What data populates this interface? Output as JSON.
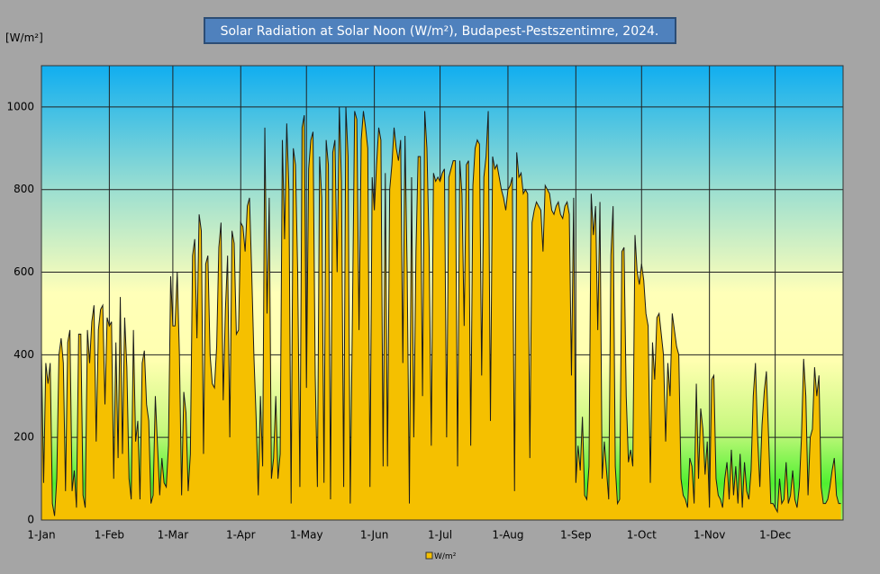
{
  "chart_data": {
    "type": "area",
    "title": "Solar Radiation at Solar Noon (W/m²), Budapest-Pestszentimre, 2024.",
    "y_axis_label": "[W/m²]",
    "ylim": [
      0,
      1100
    ],
    "yticks": [
      0,
      200,
      400,
      600,
      800,
      1000
    ],
    "grid": true,
    "legend": "bottom",
    "categories": [
      "1-Jan",
      null,
      null,
      null,
      null,
      null,
      null,
      null,
      null,
      null,
      null,
      null,
      null,
      null,
      null,
      null,
      null,
      null,
      null,
      null,
      null,
      null,
      null,
      null,
      null,
      null,
      null,
      null,
      null,
      null,
      null,
      "1-Feb",
      null,
      null,
      null,
      null,
      null,
      null,
      null,
      null,
      null,
      null,
      null,
      null,
      null,
      null,
      null,
      null,
      null,
      null,
      null,
      null,
      null,
      null,
      null,
      null,
      null,
      null,
      null,
      null,
      "1-Mar",
      null,
      null,
      null,
      null,
      null,
      null,
      null,
      null,
      null,
      null,
      null,
      null,
      null,
      null,
      null,
      null,
      null,
      null,
      null,
      null,
      null,
      null,
      null,
      null,
      null,
      null,
      null,
      null,
      null,
      null,
      "1-Apr",
      null,
      null,
      null,
      null,
      null,
      null,
      null,
      null,
      null,
      null,
      null,
      null,
      null,
      null,
      null,
      null,
      null,
      null,
      null,
      null,
      null,
      null,
      null,
      null,
      null,
      null,
      null,
      null,
      null,
      "1-May",
      null,
      null,
      null,
      null,
      null,
      null,
      null,
      null,
      null,
      null,
      null,
      null,
      null,
      null,
      null,
      null,
      null,
      null,
      null,
      null,
      null,
      null,
      null,
      null,
      null,
      null,
      null,
      null,
      null,
      null,
      "1-Jun",
      null,
      null,
      null,
      null,
      null,
      null,
      null,
      null,
      null,
      null,
      null,
      null,
      null,
      null,
      null,
      null,
      null,
      null,
      null,
      null,
      null,
      null,
      null,
      null,
      null,
      null,
      null,
      null,
      null,
      "1-Jul",
      null,
      null,
      null,
      null,
      null,
      null,
      null,
      null,
      null,
      null,
      null,
      null,
      null,
      null,
      null,
      null,
      null,
      null,
      null,
      null,
      null,
      null,
      null,
      null,
      null,
      null,
      null,
      null,
      null,
      null,
      "1-Aug",
      null,
      null,
      null,
      null,
      null,
      null,
      null,
      null,
      null,
      null,
      null,
      null,
      null,
      null,
      null,
      null,
      null,
      null,
      null,
      null,
      null,
      null,
      null,
      null,
      null,
      null,
      null,
      null,
      null,
      null,
      "1-Sep",
      null,
      null,
      null,
      null,
      null,
      null,
      null,
      null,
      null,
      null,
      null,
      null,
      null,
      null,
      null,
      null,
      null,
      null,
      null,
      null,
      null,
      null,
      null,
      null,
      null,
      null,
      null,
      null,
      null,
      "1-Oct",
      null,
      null,
      null,
      null,
      null,
      null,
      null,
      null,
      null,
      null,
      null,
      null,
      null,
      null,
      null,
      null,
      null,
      null,
      null,
      null,
      null,
      null,
      null,
      null,
      null,
      null,
      null,
      null,
      null,
      null,
      "1-Nov",
      null,
      null,
      null,
      null,
      null,
      null,
      null,
      null,
      null,
      null,
      null,
      null,
      null,
      null,
      null,
      null,
      null,
      null,
      null,
      null,
      null,
      null,
      null,
      null,
      null,
      null,
      null,
      null,
      null,
      "1-Dec",
      null,
      null,
      null,
      null,
      null,
      null,
      null,
      null,
      null,
      null,
      null,
      null,
      null,
      null,
      null,
      null,
      null,
      null,
      null,
      null,
      null,
      null,
      null,
      null,
      null,
      null,
      null,
      null,
      null,
      null
    ],
    "series": [
      {
        "name": "W/m²",
        "color": "#f5c000",
        "values": [
          410,
          90,
          380,
          330,
          380,
          40,
          10,
          100,
          400,
          440,
          380,
          70,
          430,
          460,
          70,
          120,
          30,
          450,
          450,
          60,
          30,
          460,
          380,
          480,
          520,
          190,
          460,
          510,
          520,
          280,
          490,
          470,
          480,
          100,
          430,
          150,
          540,
          160,
          490,
          370,
          100,
          50,
          460,
          190,
          240,
          50,
          380,
          410,
          280,
          240,
          40,
          60,
          300,
          180,
          60,
          150,
          90,
          80,
          180,
          590,
          470,
          470,
          600,
          400,
          60,
          310,
          260,
          70,
          160,
          640,
          680,
          440,
          740,
          700,
          160,
          620,
          640,
          400,
          330,
          320,
          420,
          660,
          720,
          290,
          510,
          640,
          200,
          700,
          670,
          450,
          460,
          720,
          710,
          650,
          760,
          780,
          600,
          400,
          250,
          60,
          300,
          130,
          950,
          500,
          780,
          100,
          150,
          300,
          100,
          160,
          920,
          680,
          960,
          800,
          40,
          900,
          860,
          600,
          80,
          950,
          980,
          320,
          850,
          920,
          940,
          350,
          80,
          880,
          780,
          90,
          920,
          860,
          50,
          890,
          920,
          600,
          1000,
          820,
          80,
          1000,
          880,
          40,
          500,
          990,
          970,
          460,
          920,
          990,
          950,
          900,
          80,
          830,
          750,
          860,
          950,
          920,
          130,
          840,
          130,
          800,
          860,
          950,
          900,
          870,
          920,
          380,
          930,
          600,
          40,
          830,
          200,
          650,
          880,
          880,
          300,
          990,
          900,
          660,
          180,
          840,
          820,
          830,
          820,
          840,
          850,
          200,
          830,
          850,
          870,
          870,
          130,
          870,
          790,
          470,
          860,
          870,
          180,
          810,
          900,
          920,
          910,
          350,
          830,
          880,
          990,
          240,
          880,
          850,
          860,
          830,
          800,
          780,
          750,
          800,
          810,
          830,
          70,
          890,
          830,
          840,
          790,
          800,
          790,
          150,
          720,
          750,
          770,
          760,
          750,
          650,
          810,
          800,
          790,
          750,
          740,
          760,
          770,
          740,
          730,
          760,
          770,
          740,
          350,
          780,
          90,
          180,
          120,
          250,
          60,
          50,
          130,
          790,
          690,
          760,
          460,
          770,
          100,
          190,
          120,
          50,
          640,
          760,
          130,
          40,
          50,
          650,
          660,
          300,
          140,
          170,
          130,
          690,
          600,
          570,
          620,
          580,
          500,
          470,
          90,
          430,
          340,
          490,
          500,
          450,
          400,
          190,
          380,
          300,
          500,
          460,
          420,
          400,
          100,
          60,
          50,
          30,
          150,
          130,
          40,
          330,
          100,
          270,
          220,
          110,
          190,
          30,
          340,
          350,
          100,
          60,
          50,
          30,
          100,
          140,
          50,
          170,
          60,
          130,
          40,
          160,
          30,
          140,
          70,
          50,
          120,
          300,
          380,
          200,
          80,
          230,
          310,
          360,
          200,
          40,
          40,
          30,
          20,
          100,
          40,
          50,
          140,
          40,
          60,
          120,
          50,
          30,
          80,
          200,
          390,
          300,
          60,
          200,
          220,
          370,
          300,
          350,
          80,
          40,
          40,
          50,
          80,
          120,
          150,
          60,
          40,
          40
        ]
      }
    ]
  }
}
